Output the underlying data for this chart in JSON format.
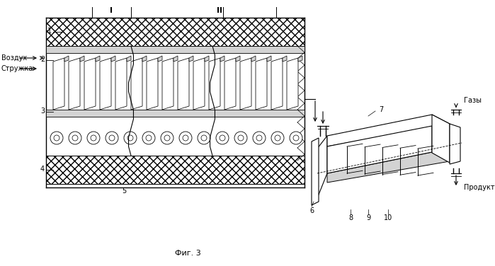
{
  "background_color": "#ffffff",
  "labels": {
    "vozdukh": "Воздух",
    "struzhka": "Стружка",
    "gazy": "Газы",
    "produkt": "Продукт",
    "fig": "Фиг. 3",
    "roman1": "I",
    "roman2": "II",
    "n1": "1",
    "n2": "2",
    "n3": "3",
    "n4": "4",
    "n5": "5",
    "n6": "6",
    "n7": "7",
    "n8": "8",
    "n9": "9",
    "n10": "10"
  }
}
